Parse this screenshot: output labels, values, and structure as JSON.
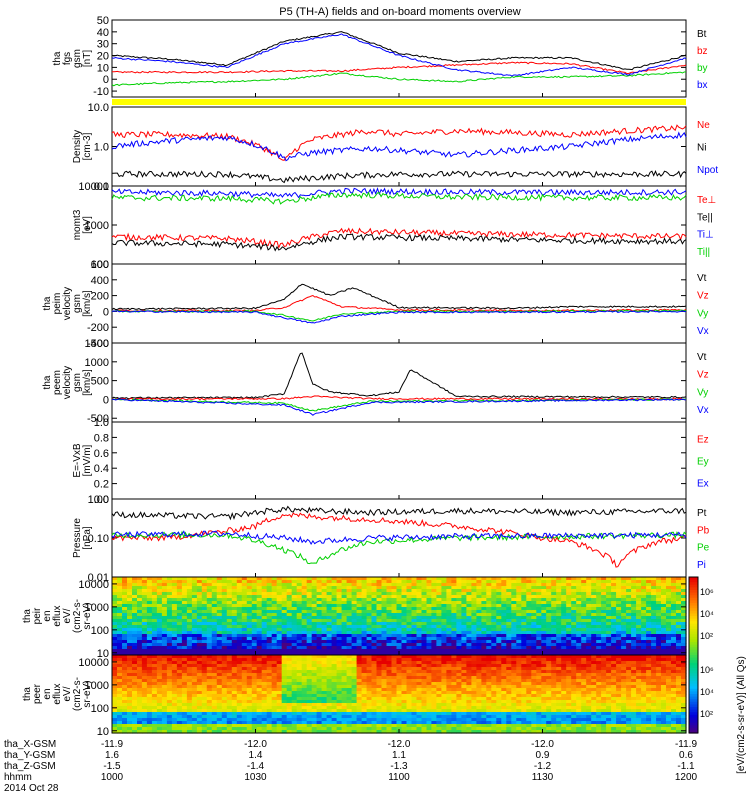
{
  "title": "P5 (TH-A) fields and on-board moments overview",
  "colors": {
    "black": "#000000",
    "red": "#ff0000",
    "green": "#00d000",
    "blue": "#0000ff",
    "yellow": "#ffff00"
  },
  "chart_data": [
    {
      "type": "line",
      "id": "fgs",
      "ylabel": [
        "tha",
        "fgs",
        "gsm",
        "[nT]"
      ],
      "yticks": [
        "50",
        "40",
        "30",
        "20",
        "10",
        "0",
        "-10"
      ],
      "legend": [
        {
          "name": "Bt",
          "color": "#000000"
        },
        {
          "name": "bz",
          "color": "#ff0000"
        },
        {
          "name": "by",
          "color": "#00d000"
        },
        {
          "name": "bx",
          "color": "#0000ff"
        }
      ],
      "series": [
        {
          "name": "Bt",
          "color": "#000000",
          "x": [
            0,
            0.1,
            0.2,
            0.3,
            0.4,
            0.5,
            0.6,
            0.7,
            0.8,
            0.9,
            1
          ],
          "values": [
            20,
            17,
            12,
            32,
            40,
            22,
            15,
            18,
            18,
            8,
            20
          ]
        },
        {
          "name": "bz",
          "color": "#ff0000",
          "x": [
            0,
            0.1,
            0.2,
            0.3,
            0.4,
            0.5,
            0.6,
            0.7,
            0.8,
            0.9,
            1
          ],
          "values": [
            6,
            6,
            6,
            7,
            7,
            10,
            12,
            14,
            13,
            5,
            12
          ]
        },
        {
          "name": "by",
          "color": "#00d000",
          "x": [
            0,
            0.1,
            0.2,
            0.3,
            0.4,
            0.5,
            0.6,
            0.7,
            0.8,
            0.9,
            1
          ],
          "values": [
            -5,
            -3,
            -2,
            0,
            5,
            0,
            -2,
            2,
            2,
            3,
            6
          ]
        },
        {
          "name": "bx",
          "color": "#0000ff",
          "x": [
            0,
            0.1,
            0.2,
            0.3,
            0.4,
            0.5,
            0.6,
            0.7,
            0.8,
            0.9,
            1
          ],
          "values": [
            18,
            15,
            10,
            30,
            38,
            20,
            8,
            3,
            10,
            4,
            18
          ]
        }
      ]
    },
    {
      "type": "line",
      "id": "density",
      "ylabel": [
        "Density",
        "[cm-3]"
      ],
      "yticks": [
        "10.0",
        "1.0",
        "0.1"
      ],
      "legend": [
        {
          "name": "Ne",
          "color": "#ff0000"
        },
        {
          "name": "Ni",
          "color": "#000000"
        },
        {
          "name": "Npot",
          "color": "#0000ff"
        }
      ],
      "series": [
        {
          "name": "Ne",
          "color": "#ff0000",
          "x": [
            0,
            0.1,
            0.2,
            0.3,
            0.35,
            0.45,
            0.5,
            0.6,
            0.8,
            1
          ],
          "values": [
            2,
            2,
            1.8,
            0.4,
            1.5,
            2.5,
            2,
            2.5,
            2,
            3
          ]
        },
        {
          "name": "Ni",
          "color": "#000000",
          "x": [
            0,
            0.1,
            0.2,
            0.3,
            0.4,
            0.5,
            0.6,
            0.8,
            1
          ],
          "values": [
            0.2,
            0.2,
            0.2,
            0.14,
            0.18,
            0.2,
            0.2,
            0.2,
            0.2
          ]
        },
        {
          "name": "Npot",
          "color": "#0000ff",
          "x": [
            0,
            0.1,
            0.2,
            0.3,
            0.35,
            0.45,
            0.6,
            0.8,
            1
          ],
          "values": [
            1,
            1.4,
            1.7,
            0.5,
            0.7,
            0.9,
            0.6,
            1,
            2
          ]
        }
      ]
    },
    {
      "type": "line",
      "id": "mom",
      "ylabel": [
        "momt3",
        "[eV]"
      ],
      "yticks": [
        "10000",
        "1000",
        "100"
      ],
      "legend": [
        {
          "name": "Te⊥",
          "color": "#ff0000"
        },
        {
          "name": "Te||",
          "color": "#000000"
        },
        {
          "name": "Ti⊥",
          "color": "#0000ff"
        },
        {
          "name": "Ti||",
          "color": "#00d000"
        }
      ],
      "series": [
        {
          "name": "Te⊥",
          "color": "#ff0000",
          "x": [
            0,
            0.2,
            0.3,
            0.4,
            0.6,
            0.8,
            1
          ],
          "values": [
            500,
            450,
            300,
            700,
            600,
            550,
            500
          ]
        },
        {
          "name": "Te||",
          "color": "#000000",
          "x": [
            0,
            0.2,
            0.3,
            0.4,
            0.6,
            0.8,
            1
          ],
          "values": [
            350,
            320,
            250,
            500,
            450,
            400,
            380
          ]
        },
        {
          "name": "Ti⊥",
          "color": "#0000ff",
          "x": [
            0,
            0.2,
            0.3,
            0.4,
            0.6,
            0.8,
            1
          ],
          "values": [
            7000,
            6500,
            5500,
            7500,
            7000,
            6800,
            7000
          ]
        },
        {
          "name": "Ti||",
          "color": "#00d000",
          "x": [
            0,
            0.2,
            0.3,
            0.4,
            0.6,
            0.8,
            1
          ],
          "values": [
            5000,
            4800,
            4000,
            6000,
            5200,
            5000,
            5000
          ]
        }
      ]
    },
    {
      "type": "line",
      "id": "peim",
      "ylabel": [
        "tha",
        "peim",
        "velocity",
        "gsm",
        "[km/s]"
      ],
      "yticks": [
        "600",
        "400",
        "200",
        "0",
        "-200",
        "-400"
      ],
      "legend": [
        {
          "name": "Vt",
          "color": "#000000"
        },
        {
          "name": "Vz",
          "color": "#ff0000"
        },
        {
          "name": "Vy",
          "color": "#00d000"
        },
        {
          "name": "Vx",
          "color": "#0000ff"
        }
      ],
      "series": [
        {
          "name": "Vt",
          "color": "#000000",
          "x": [
            0,
            0.25,
            0.3,
            0.33,
            0.38,
            0.42,
            0.5,
            0.7,
            0.8,
            1
          ],
          "values": [
            30,
            40,
            150,
            350,
            200,
            300,
            50,
            40,
            60,
            60
          ]
        },
        {
          "name": "Vz",
          "color": "#ff0000",
          "x": [
            0,
            0.25,
            0.3,
            0.35,
            0.4,
            0.5,
            0.7,
            1
          ],
          "values": [
            10,
            10,
            50,
            200,
            60,
            20,
            10,
            20
          ]
        },
        {
          "name": "Vy",
          "color": "#00d000",
          "x": [
            0,
            0.25,
            0.3,
            0.35,
            0.4,
            0.5,
            0.7,
            1
          ],
          "values": [
            0,
            0,
            -50,
            -120,
            -30,
            0,
            0,
            10
          ]
        },
        {
          "name": "Vx",
          "color": "#0000ff",
          "x": [
            0,
            0.25,
            0.3,
            0.35,
            0.4,
            0.5,
            0.7,
            1
          ],
          "values": [
            0,
            -10,
            -80,
            -150,
            -60,
            -10,
            -10,
            0
          ]
        }
      ]
    },
    {
      "type": "line",
      "id": "peem",
      "ylabel": [
        "tha",
        "peem",
        "velocity",
        "gsm",
        "[km/s]"
      ],
      "yticks": [
        "1500",
        "1000",
        "500",
        "0",
        "-500"
      ],
      "legend": [
        {
          "name": "Vt",
          "color": "#000000"
        },
        {
          "name": "Vz",
          "color": "#ff0000"
        },
        {
          "name": "Vy",
          "color": "#00d000"
        },
        {
          "name": "Vx",
          "color": "#0000ff"
        }
      ],
      "series": [
        {
          "name": "Vt",
          "color": "#000000",
          "x": [
            0,
            0.25,
            0.3,
            0.33,
            0.35,
            0.38,
            0.45,
            0.5,
            0.52,
            0.6,
            1
          ],
          "values": [
            40,
            50,
            150,
            1300,
            400,
            200,
            100,
            200,
            800,
            80,
            60
          ]
        },
        {
          "name": "Vz",
          "color": "#ff0000",
          "x": [
            0,
            0.3,
            0.35,
            0.45,
            1
          ],
          "values": [
            10,
            20,
            80,
            20,
            10
          ]
        },
        {
          "name": "Vy",
          "color": "#00d000",
          "x": [
            0,
            0.3,
            0.35,
            0.45,
            1
          ],
          "values": [
            0,
            -100,
            -300,
            -50,
            0
          ]
        },
        {
          "name": "Vx",
          "color": "#0000ff",
          "x": [
            0,
            0.3,
            0.35,
            0.45,
            1
          ],
          "values": [
            0,
            -150,
            -400,
            -80,
            0
          ]
        }
      ]
    },
    {
      "type": "line",
      "id": "efield",
      "ylabel": [
        "E=-VxB",
        "[mV/m]"
      ],
      "yticks": [
        "1.0",
        "0.8",
        "0.6",
        "0.4",
        "0.2",
        "0.0"
      ],
      "legend": [
        {
          "name": "Ez",
          "color": "#ff0000"
        },
        {
          "name": "Ey",
          "color": "#00d000"
        },
        {
          "name": "Ex",
          "color": "#0000ff"
        }
      ],
      "series": []
    },
    {
      "type": "line",
      "id": "pressure",
      "ylabel": [
        "Pressure",
        "[nPa]"
      ],
      "yticks": [
        "1.00",
        "0.10",
        "0.01"
      ],
      "legend": [
        {
          "name": "Pt",
          "color": "#000000"
        },
        {
          "name": "Pb",
          "color": "#ff0000"
        },
        {
          "name": "Pe",
          "color": "#00d000"
        },
        {
          "name": "Pi",
          "color": "#0000ff"
        }
      ],
      "series": [
        {
          "name": "Pt",
          "color": "#000000",
          "x": [
            0,
            0.2,
            0.3,
            0.35,
            0.45,
            0.6,
            0.8,
            1
          ],
          "values": [
            0.4,
            0.35,
            0.55,
            0.5,
            0.45,
            0.5,
            0.45,
            0.5
          ]
        },
        {
          "name": "Pb",
          "color": "#ff0000",
          "x": [
            0,
            0.1,
            0.2,
            0.25,
            0.3,
            0.35,
            0.45,
            0.6,
            0.75,
            0.8,
            0.88,
            0.95,
            1
          ],
          "values": [
            0.1,
            0.1,
            0.15,
            0.2,
            0.4,
            0.35,
            0.3,
            0.2,
            0.1,
            0.08,
            0.02,
            0.08,
            0.1
          ]
        },
        {
          "name": "Pe",
          "color": "#00d000",
          "x": [
            0,
            0.2,
            0.3,
            0.35,
            0.45,
            0.6,
            1
          ],
          "values": [
            0.12,
            0.12,
            0.05,
            0.02,
            0.08,
            0.1,
            0.12
          ]
        },
        {
          "name": "Pi",
          "color": "#0000ff",
          "x": [
            0,
            0.2,
            0.3,
            0.35,
            0.45,
            0.6,
            1
          ],
          "values": [
            0.12,
            0.13,
            0.1,
            0.08,
            0.1,
            0.11,
            0.12
          ]
        }
      ]
    },
    {
      "type": "heatmap",
      "id": "peir",
      "ylabel": [
        "tha",
        "peir",
        "en",
        "eflux",
        "eV/",
        "(cm2-s-",
        "sr-eV)"
      ],
      "yticks": [
        "10000",
        "1000",
        "100",
        "10"
      ]
    },
    {
      "type": "heatmap",
      "id": "peer",
      "ylabel": [
        "tha",
        "peer",
        "en",
        "eflux",
        "eV/",
        "(cm2-s-",
        "sr-eV)"
      ],
      "yticks": [
        "10000",
        "1000",
        "100",
        "10"
      ]
    }
  ],
  "colorbar": {
    "label": "[eV/(cm2-s-sr-eV)] (All Qs)",
    "ticks_top": [
      "10⁶",
      "10⁴",
      "10²"
    ],
    "ticks_bottom": [
      "10⁶",
      "10⁴",
      "10²"
    ]
  },
  "xaxis": {
    "rows": [
      {
        "label": "tha_X-GSM",
        "values": [
          "-11.9",
          "-12.0",
          "-12.0",
          "-12.0",
          "-11.9"
        ]
      },
      {
        "label": "tha_Y-GSM",
        "values": [
          "1.6",
          "1.4",
          "1.1",
          "0.9",
          "0.6"
        ]
      },
      {
        "label": "tha_Z-GSM",
        "values": [
          "-1.5",
          "-1.4",
          "-1.3",
          "-1.2",
          "-1.1"
        ]
      },
      {
        "label": "hhmm",
        "values": [
          "1000",
          "1030",
          "1100",
          "1130",
          "1200"
        ]
      }
    ],
    "date": "2014 Oct 28"
  }
}
